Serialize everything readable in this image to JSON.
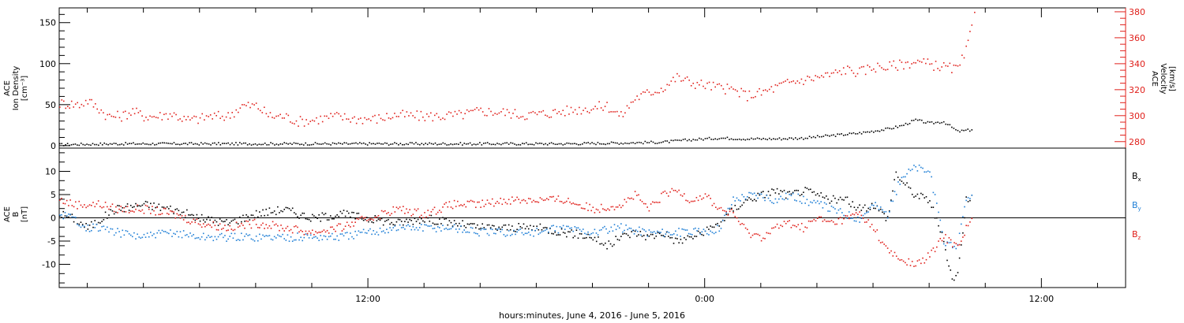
{
  "colors": {
    "black": "#000000",
    "red": "#e0201b",
    "blue": "#1f7fd6"
  },
  "xlabel": "hours:minutes, June  4, 2016 - June  5, 2016",
  "x_tick_labels": [
    {
      "t": 12,
      "label": "12:00"
    },
    {
      "t": 24,
      "label": "0:00"
    },
    {
      "t": 36,
      "label": "12:00"
    }
  ],
  "chart_data": [
    {
      "type": "scatter",
      "panel": "top",
      "left_axis": {
        "title_lines": [
          "ACE",
          "Ion Density",
          "[cm⁻³]"
        ],
        "ylim": [
          -3,
          168
        ],
        "ticks": [
          0,
          50,
          100,
          150
        ]
      },
      "right_axis": {
        "title_lines": [
          "ACE",
          "Velocity",
          "[km/s]"
        ],
        "ylim": [
          275,
          383
        ],
        "ticks": [
          280,
          300,
          320,
          340,
          360,
          380
        ]
      },
      "x_range_hours": [
        1,
        39
      ],
      "series": [
        {
          "color": "black",
          "axis": "left",
          "points": [
            [
              1.0,
              2
            ],
            [
              3.0,
              3
            ],
            [
              5.0,
              3
            ],
            [
              7.0,
              3
            ],
            [
              9.0,
              3
            ],
            [
              11.0,
              3
            ],
            [
              13.0,
              3
            ],
            [
              15.0,
              3
            ],
            [
              17.0,
              3
            ],
            [
              19.0,
              3
            ],
            [
              21.0,
              4
            ],
            [
              22.5,
              5
            ],
            [
              23.5,
              8
            ],
            [
              24.5,
              10
            ],
            [
              25.5,
              9
            ],
            [
              26.5,
              9
            ],
            [
              27.5,
              10
            ],
            [
              28.5,
              13
            ],
            [
              29.5,
              16
            ],
            [
              30.5,
              21
            ],
            [
              31.0,
              25
            ],
            [
              31.5,
              32
            ],
            [
              32.0,
              28
            ],
            [
              32.5,
              30
            ],
            [
              33.0,
              18
            ],
            [
              33.5,
              20
            ]
          ]
        },
        {
          "color": "red",
          "axis": "right",
          "points": [
            [
              1.0,
              310
            ],
            [
              1.7,
              309
            ],
            [
              2.0,
              312
            ],
            [
              2.4,
              306
            ],
            [
              2.7,
              300
            ],
            [
              3.2,
              300
            ],
            [
              3.6,
              304
            ],
            [
              4.0,
              300
            ],
            [
              4.5,
              300
            ],
            [
              5.0,
              302
            ],
            [
              5.5,
              297
            ],
            [
              6.0,
              298
            ],
            [
              6.3,
              300
            ],
            [
              7.0,
              300
            ],
            [
              7.5,
              308
            ],
            [
              8.0,
              308
            ],
            [
              8.5,
              300
            ],
            [
              9.0,
              300
            ],
            [
              9.5,
              296
            ],
            [
              10.0,
              297
            ],
            [
              10.8,
              300
            ],
            [
              11.5,
              298
            ],
            [
              12.3,
              298
            ],
            [
              13.0,
              301
            ],
            [
              13.8,
              300
            ],
            [
              14.5,
              300
            ],
            [
              15.3,
              301
            ],
            [
              16.0,
              304
            ],
            [
              16.8,
              303
            ],
            [
              17.5,
              301
            ],
            [
              18.3,
              302
            ],
            [
              19.0,
              304
            ],
            [
              19.8,
              306
            ],
            [
              20.5,
              308
            ],
            [
              21.0,
              300
            ],
            [
              21.5,
              314
            ],
            [
              22.0,
              318
            ],
            [
              22.5,
              322
            ],
            [
              23.0,
              330
            ],
            [
              23.5,
              326
            ],
            [
              24.0,
              324
            ],
            [
              24.5,
              322
            ],
            [
              25.0,
              320
            ],
            [
              25.5,
              316
            ],
            [
              26.0,
              318
            ],
            [
              26.5,
              322
            ],
            [
              27.0,
              326
            ],
            [
              27.5,
              328
            ],
            [
              28.0,
              330
            ],
            [
              28.5,
              332
            ],
            [
              29.0,
              336
            ],
            [
              29.5,
              334
            ],
            [
              30.0,
              338
            ],
            [
              30.5,
              338
            ],
            [
              31.0,
              340
            ],
            [
              31.5,
              342
            ],
            [
              32.0,
              340
            ],
            [
              32.5,
              338
            ],
            [
              33.0,
              336
            ],
            [
              33.3,
              350
            ],
            [
              33.5,
              368
            ],
            [
              33.6,
              380
            ]
          ]
        }
      ]
    },
    {
      "type": "scatter",
      "panel": "bottom",
      "left_axis": {
        "title_lines": [
          "ACE",
          "B",
          "[nT]"
        ],
        "ylim": [
          -15,
          15
        ],
        "ticks": [
          -10,
          -5,
          0,
          5,
          10
        ]
      },
      "x_range_hours": [
        1,
        39
      ],
      "legend": [
        {
          "main": "B",
          "sub": "x",
          "color": "black"
        },
        {
          "main": "B",
          "sub": "y",
          "color": "blue"
        },
        {
          "main": "B",
          "sub": "z",
          "color": "red"
        }
      ],
      "series": [
        {
          "color": "black",
          "points": [
            [
              1.0,
              1
            ],
            [
              1.5,
              0
            ],
            [
              2.0,
              -2
            ],
            [
              2.5,
              0
            ],
            [
              3.0,
              2
            ],
            [
              4.0,
              3
            ],
            [
              5.0,
              2
            ],
            [
              6.0,
              0
            ],
            [
              7.0,
              -1
            ],
            [
              8.0,
              1
            ],
            [
              9.0,
              2
            ],
            [
              10.0,
              0
            ],
            [
              11.0,
              1
            ],
            [
              12.0,
              0
            ],
            [
              13.0,
              -1
            ],
            [
              14.0,
              0
            ],
            [
              15.0,
              -1
            ],
            [
              16.0,
              -2
            ],
            [
              17.0,
              -2
            ],
            [
              18.0,
              -2
            ],
            [
              19.0,
              -3
            ],
            [
              20.0,
              -4
            ],
            [
              20.5,
              -6
            ],
            [
              21.0,
              -4
            ],
            [
              21.5,
              -3
            ],
            [
              22.0,
              -4
            ],
            [
              22.5,
              -3
            ],
            [
              23.0,
              -5
            ],
            [
              23.5,
              -4
            ],
            [
              24.0,
              -3
            ],
            [
              24.5,
              -1
            ],
            [
              25.0,
              2
            ],
            [
              25.5,
              4
            ],
            [
              26.0,
              5
            ],
            [
              26.5,
              6
            ],
            [
              27.0,
              5
            ],
            [
              27.5,
              6
            ],
            [
              28.0,
              5
            ],
            [
              28.5,
              4
            ],
            [
              29.0,
              4
            ],
            [
              29.5,
              2
            ],
            [
              30.0,
              3
            ],
            [
              30.5,
              0
            ],
            [
              30.8,
              10
            ],
            [
              31.0,
              8
            ],
            [
              31.5,
              5
            ],
            [
              32.0,
              4
            ],
            [
              32.5,
              -5
            ],
            [
              32.8,
              -13
            ],
            [
              33.0,
              -12
            ],
            [
              33.3,
              4
            ],
            [
              33.5,
              5
            ]
          ]
        },
        {
          "color": "blue",
          "points": [
            [
              1.0,
              1
            ],
            [
              1.5,
              0
            ],
            [
              2.0,
              -2
            ],
            [
              2.5,
              -2
            ],
            [
              3.0,
              -3
            ],
            [
              4.0,
              -4
            ],
            [
              5.0,
              -3
            ],
            [
              6.0,
              -4
            ],
            [
              7.0,
              -4
            ],
            [
              8.0,
              -4
            ],
            [
              9.0,
              -4
            ],
            [
              10.0,
              -4
            ],
            [
              11.0,
              -4
            ],
            [
              12.0,
              -3
            ],
            [
              13.0,
              -2
            ],
            [
              14.0,
              -2
            ],
            [
              15.0,
              -2
            ],
            [
              16.0,
              -3
            ],
            [
              17.0,
              -3
            ],
            [
              18.0,
              -3
            ],
            [
              19.0,
              -2
            ],
            [
              20.0,
              -3
            ],
            [
              21.0,
              -2
            ],
            [
              22.0,
              -3
            ],
            [
              23.0,
              -3
            ],
            [
              24.0,
              -3
            ],
            [
              24.5,
              -2
            ],
            [
              25.0,
              4
            ],
            [
              25.5,
              5
            ],
            [
              26.0,
              5
            ],
            [
              26.5,
              4
            ],
            [
              27.0,
              5
            ],
            [
              27.5,
              4
            ],
            [
              28.0,
              3
            ],
            [
              28.5,
              2
            ],
            [
              29.0,
              1
            ],
            [
              29.5,
              0
            ],
            [
              30.0,
              3
            ],
            [
              30.5,
              1
            ],
            [
              31.0,
              9
            ],
            [
              31.5,
              11
            ],
            [
              32.0,
              10
            ],
            [
              32.5,
              -5
            ],
            [
              33.0,
              -6
            ],
            [
              33.3,
              4
            ],
            [
              33.5,
              5
            ]
          ]
        },
        {
          "color": "red",
          "points": [
            [
              1.0,
              4
            ],
            [
              1.5,
              3
            ],
            [
              2.0,
              3
            ],
            [
              2.5,
              3
            ],
            [
              3.0,
              2
            ],
            [
              4.0,
              2
            ],
            [
              5.0,
              1
            ],
            [
              6.0,
              -1
            ],
            [
              7.0,
              -2
            ],
            [
              8.0,
              -1
            ],
            [
              9.0,
              -2
            ],
            [
              10.0,
              -3
            ],
            [
              11.0,
              -2
            ],
            [
              12.0,
              0
            ],
            [
              13.0,
              2
            ],
            [
              14.0,
              1
            ],
            [
              15.0,
              3
            ],
            [
              16.0,
              3
            ],
            [
              17.0,
              4
            ],
            [
              18.0,
              4
            ],
            [
              19.0,
              4
            ],
            [
              20.0,
              2
            ],
            [
              21.0,
              3
            ],
            [
              21.5,
              5
            ],
            [
              22.0,
              2
            ],
            [
              22.5,
              5
            ],
            [
              23.0,
              6
            ],
            [
              23.5,
              4
            ],
            [
              24.0,
              5
            ],
            [
              24.5,
              2
            ],
            [
              25.0,
              1
            ],
            [
              25.5,
              -3
            ],
            [
              26.0,
              -4
            ],
            [
              26.5,
              -2
            ],
            [
              27.0,
              -1
            ],
            [
              27.5,
              -2
            ],
            [
              28.0,
              0
            ],
            [
              28.5,
              -1
            ],
            [
              29.0,
              0
            ],
            [
              29.5,
              1
            ],
            [
              30.0,
              -2
            ],
            [
              30.5,
              -7
            ],
            [
              31.0,
              -9
            ],
            [
              31.5,
              -10
            ],
            [
              32.0,
              -8
            ],
            [
              32.5,
              -4
            ],
            [
              33.0,
              -6
            ],
            [
              33.3,
              -2
            ],
            [
              33.5,
              0
            ]
          ]
        }
      ]
    }
  ]
}
